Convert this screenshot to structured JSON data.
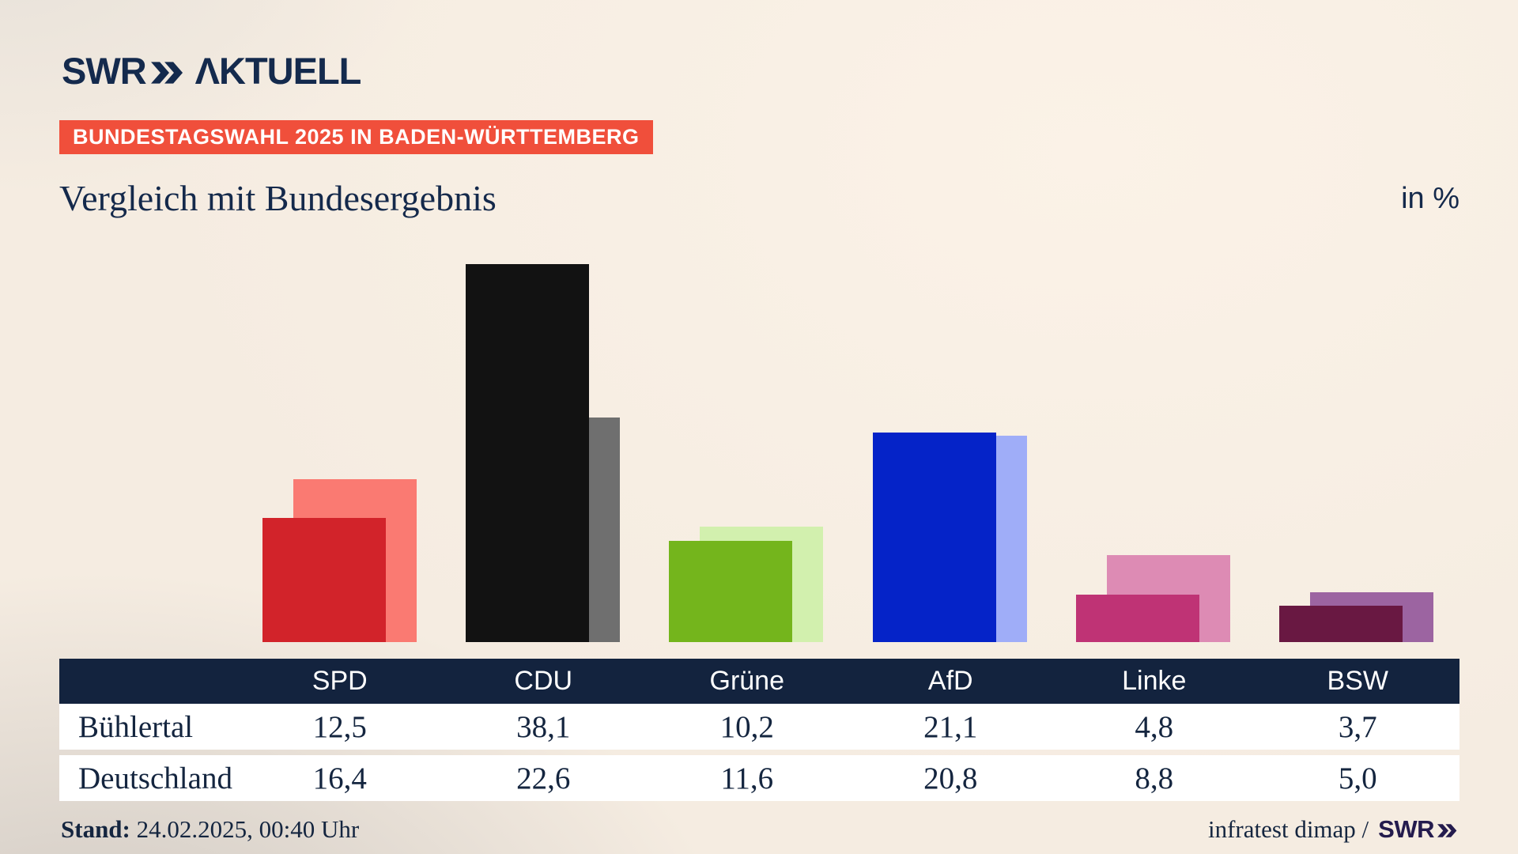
{
  "brand": {
    "logo_text": "SWR",
    "logo_suffix": "ΛKTUELL",
    "logo_color": "#142a4d"
  },
  "badge": {
    "label": "BUNDESTAGSWAHL 2025 IN BADEN-WÜRTTEMBERG",
    "bg_color": "#f04f3b",
    "text_color": "#ffffff"
  },
  "title": "Vergleich mit Bundesergebnis",
  "unit_label": "in %",
  "chart_data": {
    "type": "bar",
    "title": "Vergleich mit Bundesergebnis",
    "unit": "%",
    "categories": [
      "SPD",
      "CDU",
      "Grüne",
      "AfD",
      "Linke",
      "BSW"
    ],
    "series": [
      {
        "name": "Bühlertal",
        "values": [
          12.5,
          38.1,
          10.2,
          21.1,
          4.8,
          3.7
        ]
      },
      {
        "name": "Deutschland",
        "values": [
          16.4,
          22.6,
          11.6,
          20.8,
          8.8,
          5.0
        ]
      }
    ],
    "bar_colors": {
      "Bühlertal": [
        "#d2232a",
        "#121212",
        "#74b51c",
        "#0523c8",
        "#bf3375",
        "#691842"
      ],
      "Deutschland": [
        "#fa7a72",
        "#6f6f6f",
        "#d2f0ae",
        "#9fadf8",
        "#dd8bb4",
        "#9c64a1"
      ]
    },
    "ylim": [
      0,
      40
    ],
    "grid": false,
    "axis_labels": "none",
    "legend_position": "table-below"
  },
  "table": {
    "header": [
      "",
      "SPD",
      "CDU",
      "Grüne",
      "AfD",
      "Linke",
      "BSW"
    ],
    "rows": [
      {
        "label": "Bühlertal",
        "values": [
          "12,5",
          "38,1",
          "10,2",
          "21,1",
          "4,8",
          "3,7"
        ]
      },
      {
        "label": "Deutschland",
        "values": [
          "16,4",
          "22,6",
          "11,6",
          "20,8",
          "8,8",
          "5,0"
        ]
      }
    ],
    "header_bg": "#13233e",
    "row_bg": "#ffffff",
    "text_color": "#14253f"
  },
  "footer": {
    "stand_label": "Stand:",
    "stand_value": " 24.02.2025, 00:40 Uhr",
    "source_text": "infratest dimap / ",
    "source_brand": "SWR",
    "source_brand_color": "#241b4d"
  },
  "colors": {
    "background_cream": "#f5ece1",
    "background_shadow": "#ccc6c0",
    "navy": "#14294b"
  }
}
